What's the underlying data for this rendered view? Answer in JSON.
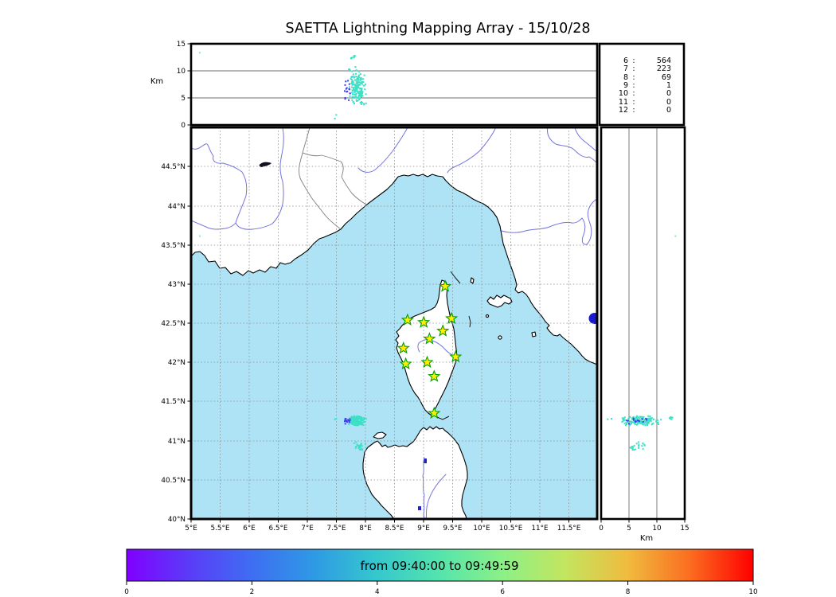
{
  "title": "SAETTA Lightning Mapping Array - 15/10/28",
  "top_panel": {
    "axis_label": "Km",
    "yticks": [
      "15",
      "10",
      "5",
      "0"
    ]
  },
  "station_counts": {
    "colon": ":",
    "highlight_row_id": "7",
    "highlight_color": "#f22f2f",
    "rows": [
      {
        "id": "6",
        "count": "564"
      },
      {
        "id": "7",
        "count": "223"
      },
      {
        "id": "8",
        "count": "69"
      },
      {
        "id": "9",
        "count": "1"
      },
      {
        "id": "10",
        "count": "0"
      },
      {
        "id": "11",
        "count": "0"
      },
      {
        "id": "12",
        "count": "0"
      }
    ]
  },
  "map": {
    "lat_ticks": [
      "44.5°N",
      "44°N",
      "43.5°N",
      "43°N",
      "42.5°N",
      "42°N",
      "41.5°N",
      "41°N",
      "40.5°N",
      "40°N"
    ],
    "lon_ticks": [
      "5°E",
      "5.5°E",
      "6°E",
      "6.5°E",
      "7°E",
      "7.5°E",
      "8°E",
      "8.5°E",
      "9°E",
      "9.5°E",
      "10°E",
      "10.5°E",
      "11°E",
      "11.5°E"
    ],
    "sea_color": "#aee3f5",
    "land_color": "#ffffff"
  },
  "right_panel": {
    "axis_label": "Km",
    "xticks": [
      "0",
      "5",
      "10",
      "15"
    ]
  },
  "colorbar": {
    "label": "from 09:40:00 to 09:49:59",
    "ticks": [
      "0",
      "2",
      "4",
      "6",
      "8",
      "10"
    ],
    "colors": [
      "#8000ff",
      "#5a3cf8",
      "#3e6ef2",
      "#2e9ae4",
      "#35c8cd",
      "#55e4ad",
      "#8cf087",
      "#c3e55f",
      "#f0bb3e",
      "#fb6c20",
      "#ff0000"
    ]
  },
  "chart_data": {
    "type": "scatter",
    "title": "SAETTA Lightning Mapping Array - 15/10/28",
    "map_extent": {
      "lon": [
        5,
        12
      ],
      "lat": [
        40,
        45
      ]
    },
    "altitude_axis_km": {
      "min": 0,
      "max": 15,
      "gridlines": [
        5,
        10
      ]
    },
    "colorbar": {
      "min": 0,
      "max": 10,
      "label": "from 09:40:00 to 09:49:59"
    },
    "station_counts": [
      [
        6,
        564
      ],
      [
        7,
        223
      ],
      [
        8,
        69
      ],
      [
        9,
        1
      ],
      [
        10,
        0
      ],
      [
        11,
        0
      ],
      [
        12,
        0
      ]
    ],
    "station_marker": {
      "fill": "#ffee00",
      "stroke": "#00a000"
    },
    "stations": [
      {
        "lon": 9.38,
        "lat": 42.97
      },
      {
        "lon": 8.73,
        "lat": 42.54
      },
      {
        "lon": 9.01,
        "lat": 42.51
      },
      {
        "lon": 9.49,
        "lat": 42.56
      },
      {
        "lon": 9.34,
        "lat": 42.4
      },
      {
        "lon": 9.11,
        "lat": 42.3
      },
      {
        "lon": 8.66,
        "lat": 42.18
      },
      {
        "lon": 9.56,
        "lat": 42.07
      },
      {
        "lon": 9.07,
        "lat": 42.0
      },
      {
        "lon": 8.7,
        "lat": 41.98
      },
      {
        "lon": 9.19,
        "lat": 41.82
      },
      {
        "lon": 9.19,
        "lat": 41.35
      }
    ],
    "clusters": [
      {
        "name": "main-cell",
        "n": 150,
        "lon": [
          7.7,
          8.02
        ],
        "lat": [
          41.19,
          41.32
        ],
        "alt_km": [
          3.5,
          10.8
        ],
        "color": "#3ce0c6"
      },
      {
        "name": "main-cell-early",
        "n": 16,
        "lon": [
          7.63,
          7.76
        ],
        "lat": [
          41.21,
          41.3
        ],
        "alt_km": [
          4.0,
          9.0
        ],
        "color": "#3d3df0"
      },
      {
        "name": "main-cell-top",
        "n": 7,
        "lon": [
          7.74,
          7.84
        ],
        "lat": [
          41.25,
          41.31
        ],
        "alt_km": [
          11.8,
          13.6
        ],
        "color": "#3ce0c6"
      },
      {
        "name": "south-cell",
        "n": 22,
        "lon": [
          7.78,
          8.05
        ],
        "lat": [
          40.86,
          41.0
        ],
        "alt_km": [
          4.5,
          9.0
        ],
        "color": "#3ce0c6"
      },
      {
        "name": "stray-west",
        "n": 1,
        "lon": [
          5.13,
          5.17
        ],
        "lat": [
          43.58,
          43.62
        ],
        "alt_km": [
          13.2,
          13.6
        ],
        "color": "#8fe8a0"
      },
      {
        "name": "low-outlier",
        "n": 2,
        "lon": [
          7.45,
          7.58
        ],
        "lat": [
          41.24,
          41.3
        ],
        "alt_km": [
          1.0,
          2.2
        ],
        "color": "#3ce0c6"
      }
    ]
  }
}
